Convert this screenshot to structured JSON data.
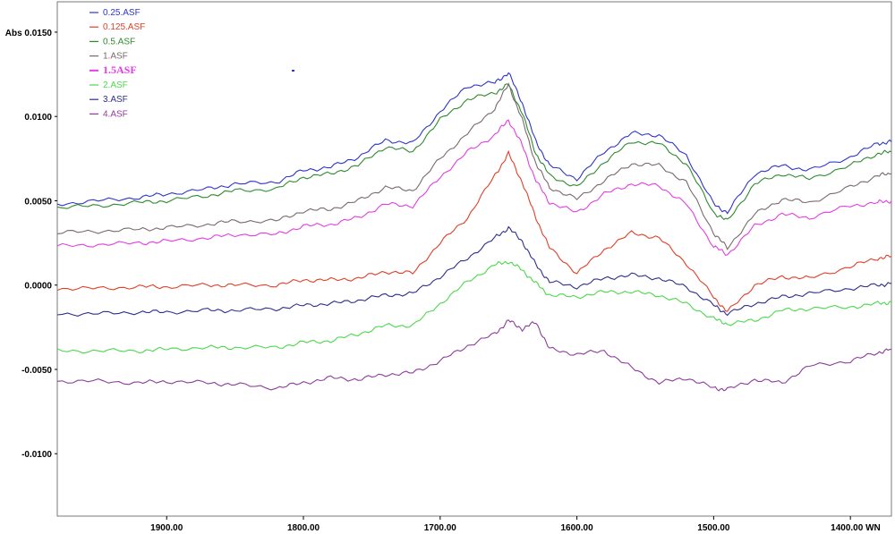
{
  "chart_data": {
    "type": "line",
    "xlabel": "WN",
    "ylabel": "Abs",
    "xlim": [
      1980,
      1370
    ],
    "ylim": [
      -0.0137,
      0.0168
    ],
    "y_ticks": [
      {
        "value": 0.015,
        "label": "Abs 0.0150"
      },
      {
        "value": 0.01,
        "label": "0.0100"
      },
      {
        "value": 0.005,
        "label": "0.0050"
      },
      {
        "value": 0.0,
        "label": "0.0000"
      },
      {
        "value": -0.005,
        "label": "-0.0050"
      },
      {
        "value": -0.01,
        "label": "-0.0100"
      }
    ],
    "x_ticks": [
      {
        "value": 1900,
        "label": "1900.00"
      },
      {
        "value": 1800,
        "label": "1800.00"
      },
      {
        "value": 1700,
        "label": "1700.00"
      },
      {
        "value": 1600,
        "label": "1600.00"
      },
      {
        "value": 1500,
        "label": "1500.00"
      },
      {
        "value": 1400,
        "label": "1400.00 WN"
      }
    ],
    "legend_position": "top-left",
    "x": [
      1980,
      1950,
      1920,
      1900,
      1870,
      1850,
      1820,
      1800,
      1780,
      1760,
      1740,
      1720,
      1700,
      1680,
      1660,
      1650,
      1640,
      1630,
      1620,
      1600,
      1580,
      1560,
      1540,
      1520,
      1500,
      1490,
      1470,
      1450,
      1430,
      1400,
      1380,
      1370
    ],
    "series": [
      {
        "name": "0.25.ASF",
        "color": "#2f35c8",
        "values": [
          0.0048,
          0.005,
          0.0052,
          0.0054,
          0.0057,
          0.006,
          0.0061,
          0.0068,
          0.007,
          0.0076,
          0.0086,
          0.0084,
          0.0103,
          0.0118,
          0.012,
          0.0126,
          0.0108,
          0.0085,
          0.0071,
          0.0063,
          0.0079,
          0.009,
          0.0089,
          0.0077,
          0.0048,
          0.0043,
          0.0066,
          0.0071,
          0.0068,
          0.0076,
          0.0084,
          0.0085
        ]
      },
      {
        "name": "0.125.ASF",
        "color": "#e0402a",
        "values": [
          -0.0002,
          -0.0002,
          -0.0001,
          -0.0001,
          0.0,
          0.0,
          0.0,
          0.0003,
          0.0003,
          0.0004,
          0.0008,
          0.0007,
          0.0025,
          0.004,
          0.0065,
          0.0078,
          0.0061,
          0.004,
          0.0022,
          0.0007,
          0.0021,
          0.0031,
          0.0028,
          0.0013,
          -0.0007,
          -0.0016,
          0.0,
          0.0005,
          0.0004,
          0.0011,
          0.0016,
          0.0017
        ]
      },
      {
        "name": "0.5.ASF",
        "color": "#2f8a2f",
        "values": [
          0.0046,
          0.0047,
          0.0049,
          0.005,
          0.0053,
          0.0056,
          0.0057,
          0.0064,
          0.0066,
          0.0071,
          0.0082,
          0.0079,
          0.0098,
          0.011,
          0.0114,
          0.0119,
          0.0102,
          0.0078,
          0.0065,
          0.0058,
          0.0073,
          0.0085,
          0.0084,
          0.0072,
          0.0043,
          0.0038,
          0.006,
          0.0066,
          0.0063,
          0.0071,
          0.0078,
          0.0079
        ]
      },
      {
        "name": "1.ASF",
        "color": "#7a6a6a",
        "values": [
          0.0031,
          0.0032,
          0.0033,
          0.0034,
          0.0036,
          0.0038,
          0.0038,
          0.0044,
          0.0045,
          0.005,
          0.0058,
          0.0056,
          0.0075,
          0.009,
          0.0105,
          0.0119,
          0.0098,
          0.0072,
          0.0058,
          0.0051,
          0.0062,
          0.0072,
          0.0071,
          0.0061,
          0.0031,
          0.0022,
          0.0042,
          0.0051,
          0.0049,
          0.0058,
          0.0065,
          0.0066
        ]
      },
      {
        "name": "1.5ASF",
        "color": "#e23ee2",
        "values": [
          0.0023,
          0.0024,
          0.0025,
          0.0026,
          0.0028,
          0.003,
          0.003,
          0.0035,
          0.0036,
          0.004,
          0.0048,
          0.0047,
          0.0064,
          0.0079,
          0.0089,
          0.0098,
          0.0083,
          0.0062,
          0.0049,
          0.0043,
          0.0054,
          0.006,
          0.0059,
          0.0048,
          0.0023,
          0.0018,
          0.0035,
          0.0042,
          0.004,
          0.0047,
          0.0049,
          0.005
        ]
      },
      {
        "name": "2.ASF",
        "color": "#4cd84c",
        "values": [
          -0.0039,
          -0.0039,
          -0.0039,
          -0.0038,
          -0.0037,
          -0.0037,
          -0.0037,
          -0.0034,
          -0.0033,
          -0.0029,
          -0.0024,
          -0.0024,
          -0.0011,
          0.0002,
          0.0012,
          0.0014,
          0.0009,
          0.0001,
          -0.0006,
          -0.0007,
          -0.0004,
          -0.0004,
          -0.0006,
          -0.0011,
          -0.002,
          -0.0023,
          -0.0021,
          -0.0015,
          -0.0014,
          -0.0013,
          -0.0011,
          -0.001
        ]
      },
      {
        "name": "3.ASF",
        "color": "#2e2e8c",
        "values": [
          -0.0017,
          -0.0017,
          -0.0016,
          -0.0016,
          -0.0015,
          -0.0015,
          -0.0014,
          -0.0012,
          -0.0011,
          -0.0009,
          -0.0006,
          -0.0005,
          0.0005,
          0.0016,
          0.0028,
          0.0034,
          0.0026,
          0.0012,
          0.0002,
          -0.0001,
          0.0004,
          0.0006,
          0.0004,
          -0.0001,
          -0.0012,
          -0.0017,
          -0.0011,
          -0.0007,
          -0.0005,
          -0.0002,
          0.0,
          0.0001
        ]
      },
      {
        "name": "4.ASF",
        "color": "#8e3c9c",
        "values": [
          -0.0057,
          -0.0057,
          -0.0058,
          -0.0057,
          -0.0058,
          -0.0059,
          -0.0061,
          -0.0058,
          -0.0055,
          -0.0056,
          -0.0053,
          -0.0052,
          -0.0045,
          -0.0036,
          -0.0029,
          -0.0021,
          -0.0026,
          -0.0022,
          -0.0038,
          -0.0041,
          -0.0039,
          -0.0049,
          -0.0058,
          -0.0055,
          -0.0061,
          -0.0062,
          -0.0056,
          -0.0058,
          -0.0048,
          -0.0045,
          -0.004,
          -0.0038
        ]
      }
    ]
  }
}
